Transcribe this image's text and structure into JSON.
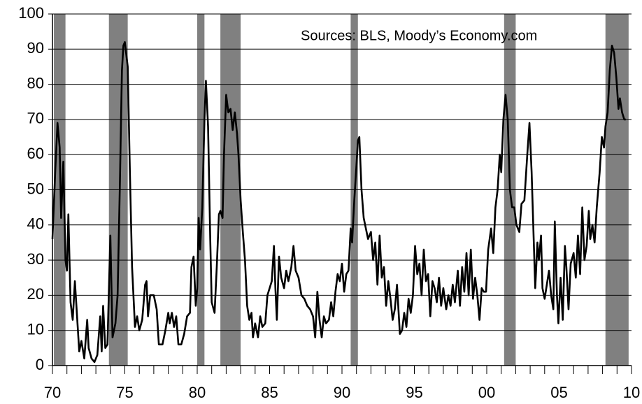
{
  "chart_data": {
    "type": "line",
    "annotation": "Sources: BLS, Moody’s Economy.com",
    "xlim": [
      1970,
      2010
    ],
    "ylim": [
      0,
      100
    ],
    "yticks": [
      0,
      10,
      20,
      30,
      40,
      50,
      60,
      70,
      80,
      90,
      100
    ],
    "xticks": [
      {
        "value": 1970,
        "label": "70"
      },
      {
        "value": 1975,
        "label": "75"
      },
      {
        "value": 1980,
        "label": "80"
      },
      {
        "value": 1985,
        "label": "85"
      },
      {
        "value": 1990,
        "label": "90"
      },
      {
        "value": 1995,
        "label": "95"
      },
      {
        "value": 2000,
        "label": "00"
      },
      {
        "value": 2005,
        "label": "05"
      },
      {
        "value": 2010,
        "label": "10"
      }
    ],
    "xminorticks": [
      1970,
      1971,
      1972,
      1973,
      1974,
      1975,
      1976,
      1977,
      1978,
      1979,
      1980,
      1981,
      1982,
      1983,
      1984,
      1985,
      1986,
      1987,
      1988,
      1989,
      1990,
      1991,
      1992,
      1993,
      1994,
      1995,
      1996,
      1997,
      1998,
      1999,
      2000,
      2001,
      2002,
      2003,
      2004,
      2005,
      2006,
      2007,
      2008,
      2009,
      2010
    ],
    "grid": true,
    "shaded_color": "#808080",
    "shaded_periods": [
      [
        1970.1,
        1970.9
      ],
      [
        1973.9,
        1975.2
      ],
      [
        1980.0,
        1980.5
      ],
      [
        1981.6,
        1983.0
      ],
      [
        1990.6,
        1991.1
      ],
      [
        2001.2,
        2002.0
      ],
      [
        2008.2,
        2009.8
      ]
    ],
    "x": [
      1970.0,
      1970.2,
      1970.35,
      1970.5,
      1970.6,
      1970.75,
      1970.9,
      1971.0,
      1971.1,
      1971.25,
      1971.4,
      1971.55,
      1971.7,
      1971.85,
      1972.0,
      1972.2,
      1972.4,
      1972.5,
      1972.7,
      1972.9,
      1973.1,
      1973.3,
      1973.4,
      1973.5,
      1973.65,
      1973.8,
      1974.0,
      1974.15,
      1974.35,
      1974.5,
      1974.65,
      1974.8,
      1974.9,
      1975.0,
      1975.2,
      1975.35,
      1975.5,
      1975.7,
      1975.85,
      1976.0,
      1976.2,
      1976.4,
      1976.5,
      1976.6,
      1976.75,
      1977.0,
      1977.2,
      1977.35,
      1977.6,
      1977.8,
      1978.0,
      1978.1,
      1978.25,
      1978.4,
      1978.55,
      1978.7,
      1978.9,
      1979.1,
      1979.3,
      1979.5,
      1979.6,
      1979.75,
      1979.9,
      1980.0,
      1980.1,
      1980.2,
      1980.35,
      1980.5,
      1980.6,
      1980.75,
      1980.9,
      1981.0,
      1981.2,
      1981.35,
      1981.5,
      1981.6,
      1981.75,
      1981.85,
      1982.0,
      1982.15,
      1982.3,
      1982.45,
      1982.6,
      1982.75,
      1982.85,
      1983.0,
      1983.15,
      1983.3,
      1983.45,
      1983.6,
      1983.75,
      1983.85,
      1984.0,
      1984.2,
      1984.35,
      1984.5,
      1984.7,
      1984.85,
      1985.0,
      1985.15,
      1985.3,
      1985.4,
      1985.5,
      1985.65,
      1985.8,
      1986.0,
      1986.15,
      1986.3,
      1986.5,
      1986.65,
      1986.8,
      1987.0,
      1987.2,
      1987.4,
      1987.6,
      1987.8,
      1988.0,
      1988.15,
      1988.3,
      1988.45,
      1988.6,
      1988.75,
      1988.9,
      1989.1,
      1989.25,
      1989.4,
      1989.55,
      1989.7,
      1989.85,
      1990.0,
      1990.15,
      1990.3,
      1990.45,
      1990.6,
      1990.7,
      1990.85,
      1991.0,
      1991.1,
      1991.2,
      1991.35,
      1991.5,
      1991.65,
      1991.8,
      1992.0,
      1992.15,
      1992.3,
      1992.45,
      1992.6,
      1992.75,
      1992.9,
      1993.05,
      1993.2,
      1993.35,
      1993.5,
      1993.65,
      1993.8,
      1994.0,
      1994.15,
      1994.3,
      1994.45,
      1994.6,
      1994.75,
      1994.9,
      1995.05,
      1995.2,
      1995.35,
      1995.5,
      1995.65,
      1995.8,
      1995.95,
      1996.1,
      1996.25,
      1996.4,
      1996.55,
      1996.7,
      1996.85,
      1997.0,
      1997.2,
      1997.35,
      1997.5,
      1997.65,
      1997.8,
      1998.0,
      1998.15,
      1998.3,
      1998.45,
      1998.6,
      1998.75,
      1998.9,
      1999.05,
      1999.2,
      1999.35,
      1999.5,
      1999.65,
      1999.8,
      1999.95,
      2000.1,
      2000.3,
      2000.45,
      2000.6,
      2000.75,
      2000.9,
      2001.0,
      2001.15,
      2001.3,
      2001.45,
      2001.6,
      2001.75,
      2001.9,
      2002.05,
      2002.25,
      2002.4,
      2002.6,
      2002.8,
      2002.95,
      2003.1,
      2003.25,
      2003.35,
      2003.5,
      2003.6,
      2003.75,
      2003.85,
      2004.0,
      2004.15,
      2004.3,
      2004.45,
      2004.6,
      2004.7,
      2004.85,
      2004.95,
      2005.1,
      2005.25,
      2005.4,
      2005.5,
      2005.65,
      2005.8,
      2006.0,
      2006.15,
      2006.3,
      2006.45,
      2006.6,
      2006.75,
      2006.9,
      2007.05,
      2007.15,
      2007.3,
      2007.45,
      2007.6,
      2007.8,
      2007.95,
      2008.1,
      2008.2,
      2008.35,
      2008.5,
      2008.65,
      2008.8,
      2008.95,
      2009.1,
      2009.2,
      2009.35,
      2009.5,
      2009.6
    ],
    "series": [
      {
        "color": "#000000",
        "values": [
          36,
          56,
          69,
          62,
          42,
          58,
          30,
          27,
          43,
          18,
          13,
          24,
          14,
          4,
          7,
          2,
          13,
          5,
          2,
          1,
          3,
          14,
          4,
          17,
          5,
          6,
          37,
          8,
          12,
          20,
          50,
          84,
          91,
          92,
          85,
          55,
          28,
          11,
          14,
          10,
          13,
          23,
          24,
          14,
          20,
          20,
          16,
          6,
          6,
          10,
          15,
          12,
          15,
          11,
          14,
          6,
          6,
          9,
          14,
          15,
          28,
          31,
          17,
          22,
          42,
          33,
          45,
          70,
          81,
          68,
          36,
          18,
          15,
          28,
          43,
          44,
          42,
          60,
          77,
          72,
          73,
          67,
          72,
          66,
          60,
          47,
          38,
          30,
          17,
          13,
          15,
          8,
          12,
          8,
          14,
          11,
          12,
          20,
          22,
          24,
          34,
          22,
          13,
          31,
          25,
          22,
          27,
          24,
          28,
          34,
          27,
          25,
          20,
          19,
          17,
          16,
          14,
          8,
          21,
          13,
          8,
          14,
          12,
          13,
          18,
          14,
          21,
          26,
          24,
          29,
          21,
          26,
          27,
          39,
          35,
          47,
          57,
          64,
          65,
          50,
          42,
          39,
          36,
          38,
          30,
          35,
          23,
          37,
          25,
          28,
          17,
          24,
          19,
          13,
          16,
          23,
          9,
          10,
          15,
          11,
          19,
          15,
          20,
          34,
          26,
          29,
          20,
          33,
          24,
          26,
          14,
          24,
          22,
          18,
          25,
          17,
          22,
          16,
          20,
          17,
          23,
          18,
          27,
          17,
          28,
          21,
          32,
          20,
          33,
          19,
          25,
          20,
          13,
          22,
          21,
          21,
          33,
          39,
          32,
          45,
          50,
          60,
          55,
          70,
          77,
          70,
          50,
          45,
          45,
          40,
          38,
          46,
          47,
          60,
          69,
          55,
          35,
          22,
          35,
          30,
          37,
          22,
          19,
          23,
          27,
          20,
          16,
          41,
          20,
          12,
          25,
          13,
          34,
          28,
          16,
          29,
          32,
          25,
          37,
          26,
          45,
          30,
          34,
          44,
          36,
          40,
          35,
          45,
          55,
          65,
          62,
          68,
          72,
          84,
          91,
          89,
          82,
          73,
          76,
          72,
          70,
          70
        ]
      }
    ]
  }
}
